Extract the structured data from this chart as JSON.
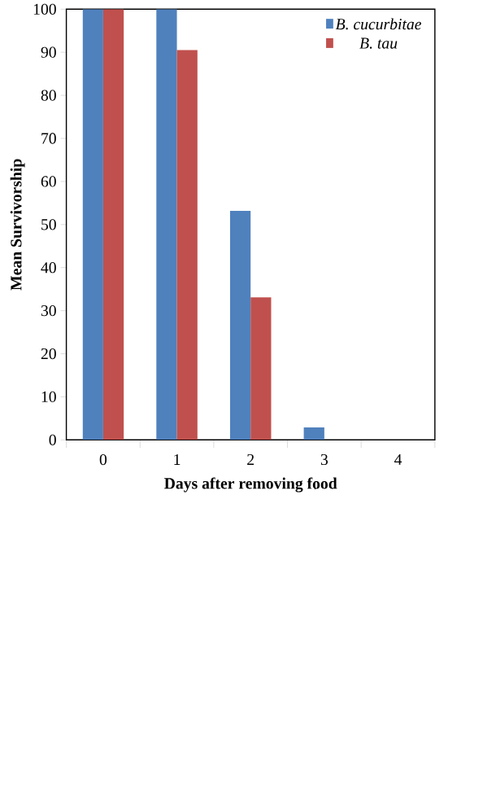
{
  "chart_data": {
    "type": "bar",
    "xlabel": "Days after removing food",
    "ylabel": "Mean Survivorship",
    "categories": [
      "0",
      "1",
      "2",
      "3",
      "4"
    ],
    "series": [
      {
        "name": "B. cucurbitae",
        "color": "#4f81bd",
        "values": [
          100,
          100,
          53.2,
          2.9,
          0
        ]
      },
      {
        "name": "B. tau",
        "color": "#c0504d",
        "values": [
          100,
          90.5,
          33.1,
          0,
          0
        ]
      }
    ],
    "ylim": [
      0,
      100
    ],
    "yticks": [
      0,
      10,
      20,
      30,
      40,
      50,
      60,
      70,
      80,
      90,
      100
    ],
    "grid": false,
    "legend": "top right"
  }
}
